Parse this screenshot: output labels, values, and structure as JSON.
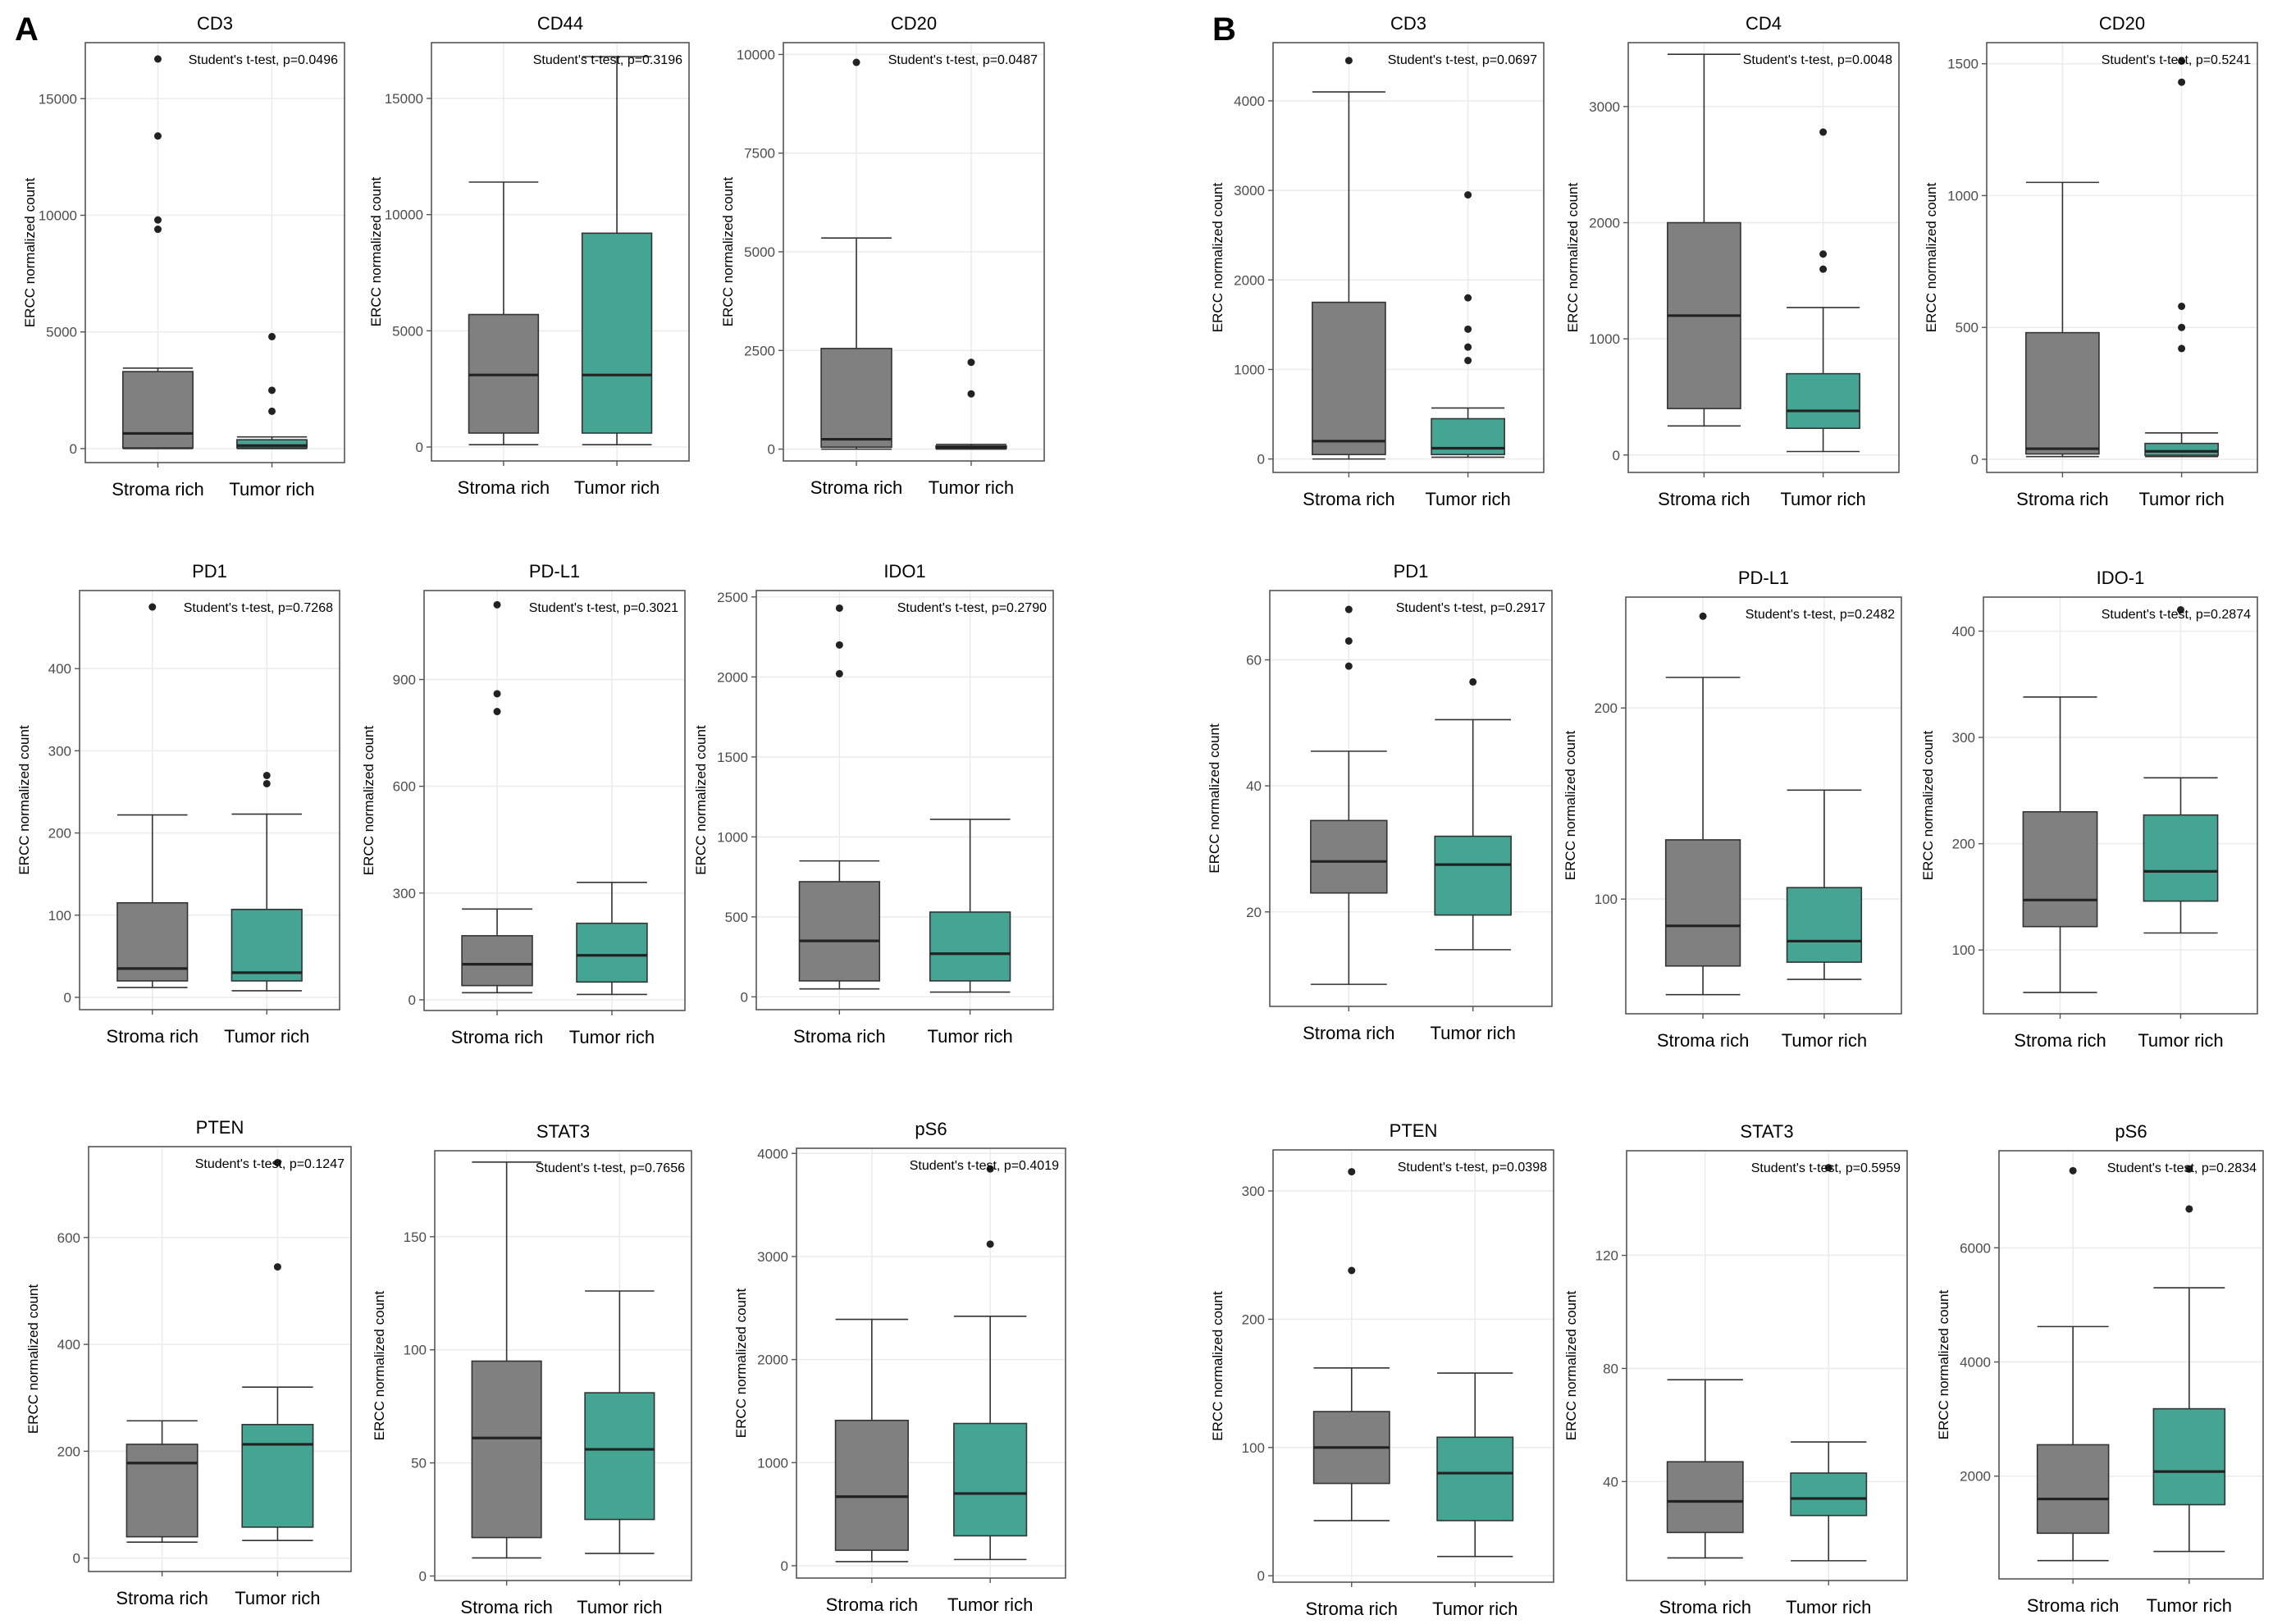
{
  "panels": [
    {
      "label": "A"
    },
    {
      "label": "B"
    }
  ],
  "chart_data": [
    {
      "type": "box",
      "panel": "A",
      "title": "CD3",
      "ylabel": "ERCC normalized count",
      "ylim": [
        -600,
        17400
      ],
      "yticks": [
        0,
        5000,
        10000,
        15000
      ],
      "annotation": "Student's t-test, p=0.0496",
      "categories": [
        "Stroma rich",
        "Tumor rich"
      ],
      "series": [
        {
          "name": "Stroma rich",
          "color": "#808080",
          "min": 0,
          "q1": 30,
          "median": 650,
          "q3": 3300,
          "max": 3450,
          "outliers": [
            9400,
            9800,
            13400,
            16700
          ]
        },
        {
          "name": "Tumor rich",
          "color": "#45a593",
          "min": 0,
          "q1": 30,
          "median": 130,
          "q3": 380,
          "max": 500,
          "outliers": [
            1600,
            2500,
            4800
          ]
        }
      ]
    },
    {
      "type": "box",
      "panel": "A",
      "title": "CD44",
      "ylabel": "ERCC normalized count",
      "ylim": [
        -600,
        17400
      ],
      "yticks": [
        0,
        5000,
        10000,
        15000
      ],
      "annotation": "Student's t-test, p=0.3196",
      "categories": [
        "Stroma rich",
        "Tumor rich"
      ],
      "series": [
        {
          "name": "Stroma rich",
          "color": "#808080",
          "min": 100,
          "q1": 600,
          "median": 3100,
          "q3": 5700,
          "max": 11400,
          "outliers": []
        },
        {
          "name": "Tumor rich",
          "color": "#45a593",
          "min": 100,
          "q1": 600,
          "median": 3100,
          "q3": 9200,
          "max": 16800,
          "outliers": []
        }
      ]
    },
    {
      "type": "box",
      "panel": "A",
      "title": "CD20",
      "ylabel": "ERCC normalized count",
      "ylim": [
        -300,
        10300
      ],
      "yticks": [
        0,
        2500,
        5000,
        7500,
        10000
      ],
      "annotation": "Student's t-test, p=0.0487",
      "categories": [
        "Stroma rich",
        "Tumor rich"
      ],
      "series": [
        {
          "name": "Stroma rich",
          "color": "#808080",
          "min": 0,
          "q1": 50,
          "median": 250,
          "q3": 2550,
          "max": 5350,
          "outliers": [
            9800
          ]
        },
        {
          "name": "Tumor rich",
          "color": "#45a593",
          "min": 0,
          "q1": 20,
          "median": 50,
          "q3": 80,
          "max": 120,
          "outliers": [
            1400,
            2200
          ]
        }
      ]
    },
    {
      "type": "box",
      "panel": "B",
      "title": "CD3",
      "ylabel": "ERCC normalized count",
      "ylim": [
        -150,
        4650
      ],
      "yticks": [
        0,
        1000,
        2000,
        3000,
        4000
      ],
      "annotation": "Student's t-test, p=0.0697",
      "categories": [
        "Stroma rich",
        "Tumor rich"
      ],
      "series": [
        {
          "name": "Stroma rich",
          "color": "#808080",
          "min": 0,
          "q1": 50,
          "median": 200,
          "q3": 1750,
          "max": 4100,
          "outliers": [
            4450
          ]
        },
        {
          "name": "Tumor rich",
          "color": "#45a593",
          "min": 20,
          "q1": 50,
          "median": 120,
          "q3": 450,
          "max": 570,
          "outliers": [
            1100,
            1250,
            1450,
            1800,
            2950
          ]
        }
      ]
    },
    {
      "type": "box",
      "panel": "B",
      "title": "CD4",
      "ylabel": "ERCC normalized count",
      "ylim": [
        -150,
        3550
      ],
      "yticks": [
        0,
        1000,
        2000,
        3000
      ],
      "annotation": "Student's t-test, p=0.0048",
      "categories": [
        "Stroma rich",
        "Tumor rich"
      ],
      "series": [
        {
          "name": "Stroma rich",
          "color": "#808080",
          "min": 250,
          "q1": 400,
          "median": 1200,
          "q3": 2000,
          "max": 3450,
          "outliers": []
        },
        {
          "name": "Tumor rich",
          "color": "#45a593",
          "min": 30,
          "q1": 230,
          "median": 380,
          "q3": 700,
          "max": 1270,
          "outliers": [
            1600,
            1730,
            2780
          ]
        }
      ]
    },
    {
      "type": "box",
      "panel": "B",
      "title": "CD20",
      "ylabel": "ERCC normalized count",
      "ylim": [
        -50,
        1580
      ],
      "yticks": [
        0,
        500,
        1000,
        1500
      ],
      "annotation": "Student's t-test, p=0.5241",
      "categories": [
        "Stroma rich",
        "Tumor rich"
      ],
      "series": [
        {
          "name": "Stroma rich",
          "color": "#808080",
          "min": 10,
          "q1": 20,
          "median": 40,
          "q3": 480,
          "max": 1050,
          "outliers": []
        },
        {
          "name": "Tumor rich",
          "color": "#45a593",
          "min": 10,
          "q1": 15,
          "median": 30,
          "q3": 60,
          "max": 100,
          "outliers": [
            420,
            500,
            580,
            1430,
            1510
          ]
        }
      ]
    },
    {
      "type": "box",
      "panel": "A",
      "title": "PD1",
      "ylabel": "ERCC normalized count",
      "ylim": [
        -15,
        495
      ],
      "yticks": [
        0,
        100,
        200,
        300,
        400
      ],
      "annotation": "Student's t-test, p=0.7268",
      "categories": [
        "Stroma rich",
        "Tumor rich"
      ],
      "series": [
        {
          "name": "Stroma rich",
          "color": "#808080",
          "min": 12,
          "q1": 20,
          "median": 35,
          "q3": 115,
          "max": 222,
          "outliers": [
            475
          ]
        },
        {
          "name": "Tumor rich",
          "color": "#45a593",
          "min": 8,
          "q1": 20,
          "median": 30,
          "q3": 107,
          "max": 223,
          "outliers": [
            260,
            270
          ]
        }
      ]
    },
    {
      "type": "box",
      "panel": "A",
      "title": "PD-L1",
      "ylabel": "ERCC normalized count",
      "ylim": [
        -30,
        1150
      ],
      "yticks": [
        0,
        300,
        600,
        900
      ],
      "annotation": "Student's t-test, p=0.3021",
      "categories": [
        "Stroma rich",
        "Tumor rich"
      ],
      "series": [
        {
          "name": "Stroma rich",
          "color": "#808080",
          "min": 20,
          "q1": 40,
          "median": 100,
          "q3": 180,
          "max": 255,
          "outliers": [
            810,
            860,
            1110
          ]
        },
        {
          "name": "Tumor rich",
          "color": "#45a593",
          "min": 15,
          "q1": 50,
          "median": 125,
          "q3": 215,
          "max": 330,
          "outliers": []
        }
      ]
    },
    {
      "type": "box",
      "panel": "A",
      "title": "IDO1",
      "ylabel": "ERCC normalized count",
      "ylim": [
        -80,
        2540
      ],
      "yticks": [
        0,
        500,
        1000,
        1500,
        2000,
        2500
      ],
      "annotation": "Student's t-test, p=0.2790",
      "categories": [
        "Stroma rich",
        "Tumor rich"
      ],
      "series": [
        {
          "name": "Stroma rich",
          "color": "#808080",
          "min": 50,
          "q1": 100,
          "median": 350,
          "q3": 720,
          "max": 850,
          "outliers": [
            2020,
            2200,
            2430
          ]
        },
        {
          "name": "Tumor rich",
          "color": "#45a593",
          "min": 30,
          "q1": 100,
          "median": 270,
          "q3": 530,
          "max": 1110,
          "outliers": []
        }
      ]
    },
    {
      "type": "box",
      "panel": "B",
      "title": "PD1",
      "ylabel": "ERCC normalized count",
      "ylim": [
        5,
        71
      ],
      "yticks": [
        20,
        40,
        60
      ],
      "annotation": "Student's t-test, p=0.2917",
      "categories": [
        "Stroma rich",
        "Tumor rich"
      ],
      "series": [
        {
          "name": "Stroma rich",
          "color": "#808080",
          "min": 8.5,
          "q1": 23,
          "median": 28,
          "q3": 34.5,
          "max": 45.5,
          "outliers": [
            59,
            63,
            68
          ]
        },
        {
          "name": "Tumor rich",
          "color": "#45a593",
          "min": 14,
          "q1": 19.5,
          "median": 27.5,
          "q3": 32,
          "max": 50.5,
          "outliers": [
            56.5
          ]
        }
      ]
    },
    {
      "type": "box",
      "panel": "B",
      "title": "PD-L1",
      "ylabel": "ERCC normalized count",
      "ylim": [
        40,
        258
      ],
      "yticks": [
        100,
        200
      ],
      "annotation": "Student's t-test, p=0.2482",
      "categories": [
        "Stroma rich",
        "Tumor rich"
      ],
      "series": [
        {
          "name": "Stroma rich",
          "color": "#808080",
          "min": 50,
          "q1": 65,
          "median": 86,
          "q3": 131,
          "max": 216,
          "outliers": [
            248
          ]
        },
        {
          "name": "Tumor rich",
          "color": "#45a593",
          "min": 58,
          "q1": 67,
          "median": 78,
          "q3": 106,
          "max": 157,
          "outliers": []
        }
      ]
    },
    {
      "type": "box",
      "panel": "B",
      "title": "IDO-1",
      "ylabel": "ERCC normalized count",
      "ylim": [
        40,
        432
      ],
      "yticks": [
        100,
        200,
        300,
        400
      ],
      "annotation": "Student's t-test, p=0.2874",
      "categories": [
        "Stroma rich",
        "Tumor rich"
      ],
      "series": [
        {
          "name": "Stroma rich",
          "color": "#808080",
          "min": 60,
          "q1": 122,
          "median": 147,
          "q3": 230,
          "max": 338,
          "outliers": []
        },
        {
          "name": "Tumor rich",
          "color": "#45a593",
          "min": 116,
          "q1": 146,
          "median": 174,
          "q3": 227,
          "max": 262,
          "outliers": [
            420
          ]
        }
      ]
    },
    {
      "type": "box",
      "panel": "A",
      "title": "PTEN",
      "ylabel": "ERCC normalized count",
      "ylim": [
        -25,
        770
      ],
      "yticks": [
        0,
        200,
        400,
        600
      ],
      "annotation": "Student's t-test, p=0.1247",
      "categories": [
        "Stroma rich",
        "Tumor rich"
      ],
      "series": [
        {
          "name": "Stroma rich",
          "color": "#808080",
          "min": 30,
          "q1": 40,
          "median": 178,
          "q3": 213,
          "max": 257,
          "outliers": []
        },
        {
          "name": "Tumor rich",
          "color": "#45a593",
          "min": 33,
          "q1": 58,
          "median": 213,
          "q3": 250,
          "max": 320,
          "outliers": [
            545,
            740
          ]
        }
      ]
    },
    {
      "type": "box",
      "panel": "A",
      "title": "STAT3",
      "ylabel": "ERCC normalized count",
      "ylim": [
        -2,
        188
      ],
      "yticks": [
        0,
        50,
        100,
        150
      ],
      "annotation": "Student's t-test, p=0.7656",
      "categories": [
        "Stroma rich",
        "Tumor rich"
      ],
      "series": [
        {
          "name": "Stroma rich",
          "color": "#808080",
          "min": 8,
          "q1": 17,
          "median": 61,
          "q3": 95,
          "max": 183,
          "outliers": []
        },
        {
          "name": "Tumor rich",
          "color": "#45a593",
          "min": 10,
          "q1": 25,
          "median": 56,
          "q3": 81,
          "max": 126,
          "outliers": []
        }
      ]
    },
    {
      "type": "box",
      "panel": "A",
      "title": "pS6",
      "ylabel": "ERCC normalized count",
      "ylim": [
        -120,
        4050
      ],
      "yticks": [
        0,
        1000,
        2000,
        3000,
        4000
      ],
      "annotation": "Student's t-test, p=0.4019",
      "categories": [
        "Stroma rich",
        "Tumor rich"
      ],
      "series": [
        {
          "name": "Stroma rich",
          "color": "#808080",
          "min": 40,
          "q1": 150,
          "median": 670,
          "q3": 1410,
          "max": 2390,
          "outliers": []
        },
        {
          "name": "Tumor rich",
          "color": "#45a593",
          "min": 60,
          "q1": 290,
          "median": 700,
          "q3": 1380,
          "max": 2420,
          "outliers": [
            3120,
            3850
          ]
        }
      ]
    },
    {
      "type": "box",
      "panel": "B",
      "title": "PTEN",
      "ylabel": "ERCC normalized count",
      "ylim": [
        -5,
        332
      ],
      "yticks": [
        0,
        100,
        200,
        300
      ],
      "annotation": "Student's t-test, p=0.0398",
      "categories": [
        "Stroma rich",
        "Tumor rich"
      ],
      "series": [
        {
          "name": "Stroma rich",
          "color": "#808080",
          "min": 43,
          "q1": 72,
          "median": 100,
          "q3": 128,
          "max": 162,
          "outliers": [
            238,
            315
          ]
        },
        {
          "name": "Tumor rich",
          "color": "#45a593",
          "min": 15,
          "q1": 43,
          "median": 80,
          "q3": 108,
          "max": 158,
          "outliers": []
        }
      ]
    },
    {
      "type": "box",
      "panel": "B",
      "title": "STAT3",
      "ylabel": "ERCC normalized count",
      "ylim": [
        5,
        157
      ],
      "yticks": [
        40,
        80,
        120
      ],
      "annotation": "Student's t-test, p=0.5959",
      "categories": [
        "Stroma rich",
        "Tumor rich"
      ],
      "series": [
        {
          "name": "Stroma rich",
          "color": "#808080",
          "min": 13,
          "q1": 22,
          "median": 33,
          "q3": 47,
          "max": 76,
          "outliers": []
        },
        {
          "name": "Tumor rich",
          "color": "#45a593",
          "min": 12,
          "q1": 28,
          "median": 34,
          "q3": 43,
          "max": 54,
          "outliers": [
            151
          ]
        }
      ]
    },
    {
      "type": "box",
      "panel": "B",
      "title": "pS6",
      "ylabel": "ERCC normalized count",
      "ylim": [
        200,
        7700
      ],
      "yticks": [
        2000,
        4000,
        6000
      ],
      "annotation": "Student's t-test, p=0.2834",
      "categories": [
        "Stroma rich",
        "Tumor rich"
      ],
      "series": [
        {
          "name": "Stroma rich",
          "color": "#808080",
          "min": 520,
          "q1": 1000,
          "median": 1600,
          "q3": 2550,
          "max": 4620,
          "outliers": [
            7350
          ]
        },
        {
          "name": "Tumor rich",
          "color": "#45a593",
          "min": 680,
          "q1": 1500,
          "median": 2080,
          "q3": 3180,
          "max": 5300,
          "outliers": [
            6680,
            7380
          ]
        }
      ]
    }
  ]
}
